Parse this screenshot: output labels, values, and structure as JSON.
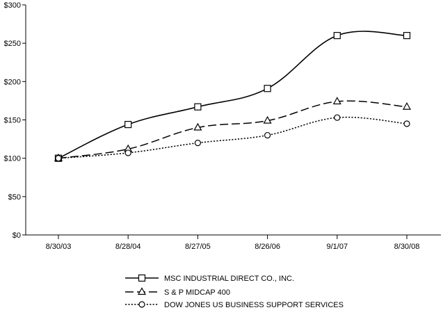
{
  "chart_data": {
    "type": "line",
    "title": "",
    "xlabel": "",
    "ylabel": "",
    "categories": [
      "8/30/03",
      "8/28/04",
      "8/27/05",
      "8/26/06",
      "9/1/07",
      "8/30/08"
    ],
    "ylim": [
      0,
      300
    ],
    "yticks": [
      0,
      50,
      100,
      150,
      200,
      250,
      300
    ],
    "ytick_labels": [
      "$0",
      "$50",
      "$100",
      "$150",
      "$200",
      "$250",
      "$300"
    ],
    "grid": false,
    "legend_position": "bottom",
    "series": [
      {
        "name": "MSC INDUSTRIAL DIRECT CO., INC.",
        "values": [
          100,
          144,
          167,
          191,
          260,
          260
        ],
        "line_style": "solid",
        "marker": "square",
        "color": "#000000"
      },
      {
        "name": "S & P MIDCAP 400",
        "values": [
          100,
          112,
          140,
          149,
          174,
          167
        ],
        "line_style": "dashed",
        "marker": "triangle",
        "color": "#000000"
      },
      {
        "name": "DOW JONES US BUSINESS SUPPORT SERVICES",
        "values": [
          100,
          107,
          120,
          130,
          153,
          145
        ],
        "line_style": "dotted",
        "marker": "circle",
        "color": "#000000"
      }
    ]
  }
}
